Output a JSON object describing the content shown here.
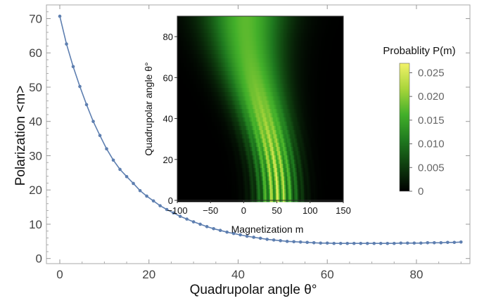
{
  "chart_data": [
    {
      "type": "line",
      "xlabel": "Quadrupolar angle θ°",
      "ylabel": "Polarization <m>",
      "xlim": [
        -3,
        92
      ],
      "ylim": [
        -1.5,
        74
      ],
      "xticks": [
        0,
        20,
        40,
        60,
        80
      ],
      "yticks": [
        0,
        10,
        20,
        30,
        40,
        50,
        60,
        70
      ],
      "grid": false,
      "color": "#5e7fb0",
      "markers": true,
      "series": [
        {
          "x": [
            0,
            1.5,
            3,
            4.5,
            6,
            7.5,
            9,
            10.5,
            12,
            13.5,
            15,
            16.5,
            18,
            19.5,
            21,
            22.5,
            24,
            25.5,
            27,
            28.5,
            30,
            31.5,
            33,
            34.5,
            36,
            37.5,
            39,
            40.5,
            42,
            43.5,
            45,
            46.5,
            48,
            49.5,
            51,
            52.5,
            54,
            55.5,
            57,
            58.5,
            60,
            61.5,
            63,
            64.5,
            66,
            67.5,
            69,
            70.5,
            72,
            73.5,
            75,
            76.5,
            78,
            79.5,
            81,
            82.5,
            84,
            85.5,
            87,
            88.5,
            90
          ],
          "y": [
            70.7,
            62.6,
            56.0,
            50.2,
            44.9,
            40.0,
            35.9,
            32.0,
            28.7,
            26.0,
            23.9,
            21.9,
            19.8,
            18.2,
            16.8,
            15.4,
            14.3,
            13.3,
            12.3,
            11.5,
            10.7,
            10.0,
            9.3,
            8.7,
            8.2,
            7.7,
            7.3,
            6.9,
            6.5,
            6.2,
            5.9,
            5.6,
            5.4,
            5.2,
            5.0,
            4.9,
            4.8,
            4.7,
            4.6,
            4.5,
            4.5,
            4.4,
            4.4,
            4.4,
            4.4,
            4.4,
            4.4,
            4.4,
            4.4,
            4.4,
            4.4,
            4.5,
            4.5,
            4.5,
            4.5,
            4.6,
            4.6,
            4.6,
            4.7,
            4.7,
            4.8
          ]
        }
      ]
    },
    {
      "type": "heatmap",
      "xlabel": "Magnetization m",
      "ylabel": "Quadrupolar angle θ°",
      "xlim": [
        -100,
        150
      ],
      "ylim": [
        0,
        90
      ],
      "xticks": [
        -100,
        -50,
        0,
        50,
        100,
        150
      ],
      "xtick_labels": [
        "−100",
        "−50",
        "0",
        "50",
        "100",
        "150"
      ],
      "yticks": [
        0,
        20,
        40,
        60,
        80
      ],
      "colorbar": {
        "label": "Probablity P(m)",
        "range": [
          0,
          0.027
        ],
        "ticks": [
          0,
          0.005,
          0.01,
          0.015,
          0.02,
          0.025
        ],
        "tick_labels": [
          "0",
          "0.005",
          "0.010",
          "0.015",
          "0.020",
          "0.025"
        ],
        "colors": [
          "#000000",
          "#0e3d0e",
          "#1f7a1f",
          "#43b02a",
          "#a8d53a",
          "#f2f26a"
        ]
      }
    }
  ]
}
